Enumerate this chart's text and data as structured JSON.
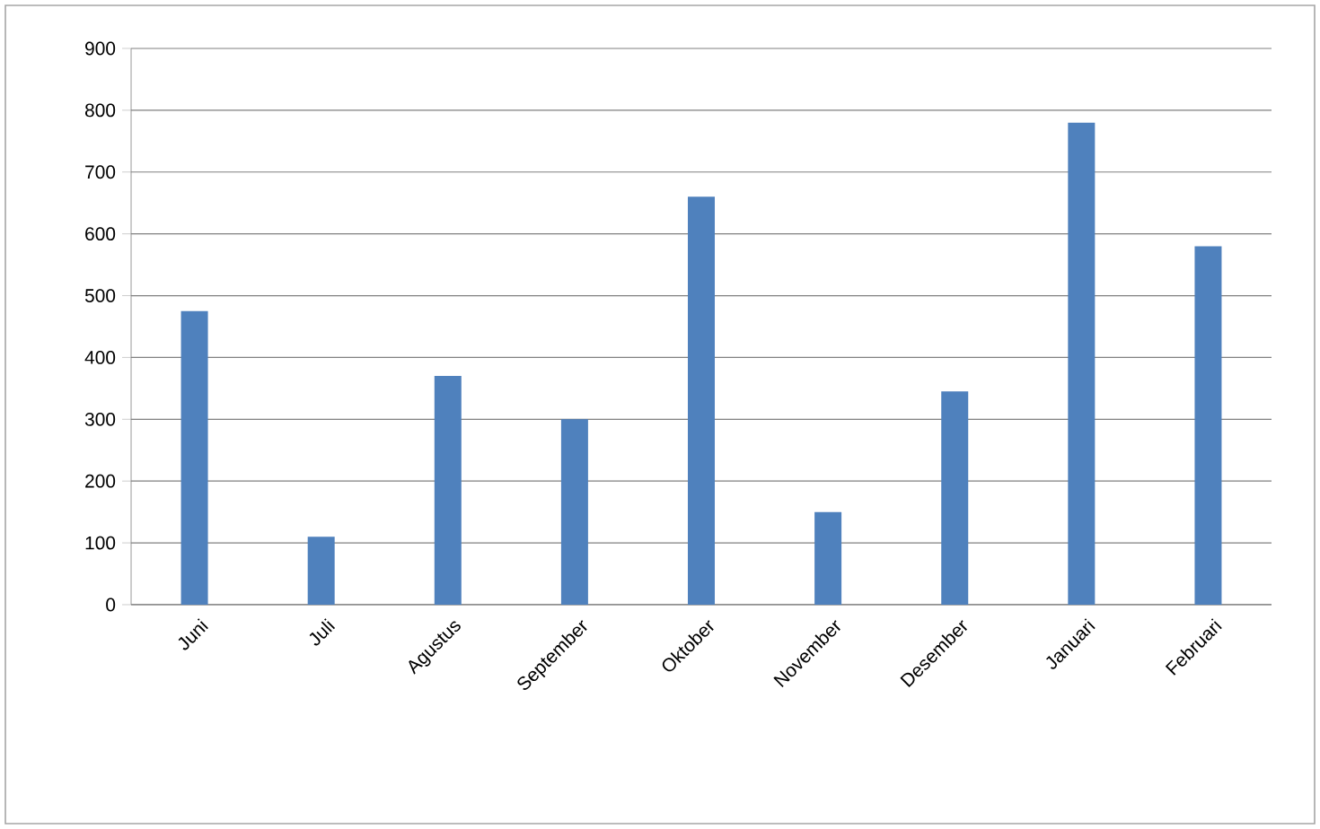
{
  "chart_data": {
    "type": "bar",
    "categories": [
      "Juni",
      "Juli",
      "Agustus",
      "September",
      "Oktober",
      "November",
      "Desember",
      "Januari",
      "Februari"
    ],
    "values": [
      475,
      110,
      370,
      300,
      660,
      150,
      345,
      780,
      580
    ],
    "color": "#4f81bd",
    "ylim": [
      0,
      900
    ],
    "yticks": [
      0,
      100,
      200,
      300,
      400,
      500,
      600,
      700,
      800,
      900
    ],
    "grid": "y"
  }
}
